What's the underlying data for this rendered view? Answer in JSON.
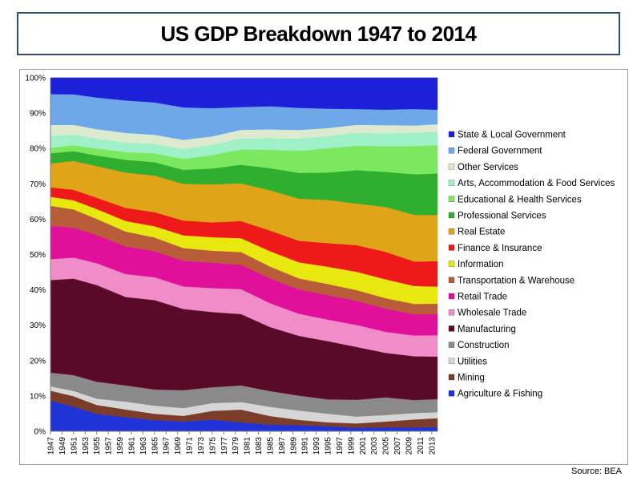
{
  "title": "US GDP Breakdown 1947 to 2014",
  "source": "Source: BEA",
  "chart_data": {
    "type": "area",
    "stacked": "percent",
    "xlim": [
      1947,
      2014
    ],
    "ylim": [
      0,
      100
    ],
    "y_tick_labels": [
      "0%",
      "10%",
      "20%",
      "30%",
      "40%",
      "50%",
      "60%",
      "70%",
      "80%",
      "90%",
      "100%"
    ],
    "x_tick_labels": [
      "1947",
      "1949",
      "1951",
      "1953",
      "1955",
      "1957",
      "1959",
      "1961",
      "1963",
      "1965",
      "1967",
      "1969",
      "1971",
      "1973",
      "1975",
      "1977",
      "1979",
      "1981",
      "1983",
      "1985",
      "1987",
      "1989",
      "1991",
      "1993",
      "1995",
      "1997",
      "1999",
      "2001",
      "2003",
      "2005",
      "2007",
      "2009",
      "2011",
      "2013"
    ],
    "legend_position": "right",
    "grid": "horizontal",
    "x": [
      1947,
      1951,
      1955,
      1960,
      1965,
      1970,
      1975,
      1980,
      1985,
      1990,
      1995,
      2000,
      2005,
      2010,
      2014
    ],
    "series": [
      {
        "name": "Agriculture & Fishing",
        "color": "#2033d6",
        "values": [
          8.5,
          7,
          5,
          4,
          3.2,
          2.8,
          3.3,
          2.5,
          1.9,
          1.7,
          1.4,
          1.0,
          1.1,
          1.1,
          1.2
        ]
      },
      {
        "name": "Mining",
        "color": "#7b3d2a",
        "values": [
          2.7,
          3,
          2.5,
          2.2,
          1.8,
          1.6,
          2.5,
          3.6,
          2.4,
          1.5,
          1.1,
          1.2,
          1.6,
          2.2,
          2.5
        ]
      },
      {
        "name": "Utilities",
        "color": "#d6d6d6",
        "values": [
          1.2,
          1.5,
          1.8,
          2.2,
          2.3,
          2.2,
          2.2,
          2.1,
          2.6,
          2.6,
          2.4,
          1.9,
          1.8,
          1.8,
          1.7
        ]
      },
      {
        "name": "Construction",
        "color": "#8a8a8a",
        "values": [
          3.8,
          4.5,
          4.8,
          4.6,
          4.6,
          5.1,
          4.5,
          4.7,
          4.4,
          4.2,
          4.0,
          4.7,
          4.9,
          3.6,
          3.7
        ]
      },
      {
        "name": "Manufacturing",
        "color": "#5a0a28",
        "values": [
          25.5,
          27.5,
          27.5,
          25,
          25.4,
          23,
          21.3,
          20,
          18,
          16.7,
          16.2,
          14.7,
          12.3,
          12.2,
          12.0
        ]
      },
      {
        "name": "Wholesale Trade",
        "color": "#f08cc8",
        "values": [
          5.8,
          6,
          6.2,
          6.5,
          6.5,
          6.4,
          6.8,
          7.0,
          6.7,
          6.2,
          6.0,
          6.1,
          5.8,
          5.8,
          6.0
        ]
      },
      {
        "name": "Retail Trade",
        "color": "#e0109a",
        "values": [
          9.2,
          8.5,
          8,
          7.8,
          7.4,
          7.3,
          7.2,
          6.8,
          7.0,
          6.8,
          6.8,
          6.7,
          6.4,
          5.9,
          5.9
        ]
      },
      {
        "name": "Transportation & Warehouse",
        "color": "#b85c3a",
        "values": [
          5.5,
          5.2,
          4.6,
          4.2,
          3.9,
          3.6,
          3.4,
          3.6,
          3.3,
          3.1,
          3.1,
          3.0,
          2.9,
          2.9,
          3.0
        ]
      },
      {
        "name": "Information",
        "color": "#e8e810",
        "values": [
          2.5,
          2.6,
          2.8,
          3.0,
          3.2,
          3.6,
          3.8,
          3.9,
          4.3,
          4.5,
          4.8,
          5.1,
          5.2,
          5.0,
          4.8
        ]
      },
      {
        "name": "Finance & Insurance",
        "color": "#ee1a1a",
        "values": [
          2.6,
          3,
          3.2,
          3.7,
          4,
          4.2,
          4.2,
          4.8,
          5.8,
          6.0,
          6.6,
          7.4,
          7.6,
          6.8,
          7.2
        ]
      },
      {
        "name": "Real Estate",
        "color": "#e0a418",
        "values": [
          6.6,
          8.2,
          9.0,
          10.0,
          10.4,
          10.4,
          10.8,
          10.6,
          11.3,
          11.8,
          12.0,
          11.6,
          12.4,
          13.0,
          13.0
        ]
      },
      {
        "name": "Professional Services",
        "color": "#2fae2f",
        "values": [
          2.8,
          2.8,
          3.0,
          3.6,
          3.8,
          4.0,
          4.5,
          5.2,
          6.2,
          7.2,
          7.6,
          9.3,
          9.7,
          11.3,
          11.7
        ]
      },
      {
        "name": "Educational & Health Services",
        "color": "#7ce860",
        "values": [
          1.5,
          1.7,
          2.0,
          2.2,
          2.5,
          3.1,
          3.8,
          4.3,
          5.2,
          6.2,
          6.8,
          6.8,
          7.1,
          7.9,
          8.0
        ]
      },
      {
        "name": "Arts, Accommodation & Food Services",
        "color": "#a0f0c8",
        "values": [
          3.3,
          3.0,
          2.8,
          2.7,
          2.7,
          2.8,
          2.9,
          3.1,
          3.3,
          3.4,
          3.4,
          3.6,
          3.6,
          3.7,
          3.8
        ]
      },
      {
        "name": "Other Services",
        "color": "#dcebd0",
        "values": [
          3.0,
          2.8,
          2.7,
          2.7,
          2.6,
          2.6,
          2.4,
          2.4,
          2.4,
          2.4,
          2.2,
          2.2,
          2.2,
          2.0,
          2.1
        ]
      },
      {
        "name": "Federal Government",
        "color": "#6fa8e8",
        "values": [
          8.5,
          8.7,
          9.0,
          9.2,
          9.2,
          9.2,
          8.0,
          6.4,
          6.5,
          6.2,
          5.4,
          4.4,
          4.3,
          4.6,
          4.1
        ]
      },
      {
        "name": "State & Local Government",
        "color": "#1c20d8",
        "values": [
          4.5,
          4.7,
          5.6,
          6.4,
          7.0,
          8.4,
          8.6,
          8.2,
          8.0,
          8.4,
          8.6,
          8.7,
          8.8,
          8.7,
          9.0
        ]
      }
    ]
  }
}
